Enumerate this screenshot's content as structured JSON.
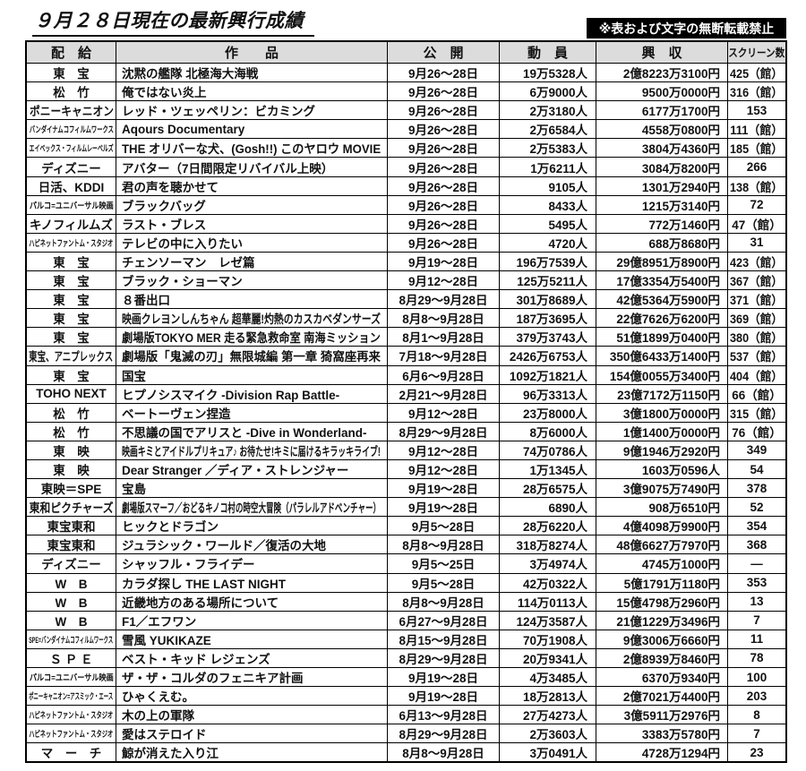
{
  "page": {
    "title": "９月２８日現在の最新興行成績",
    "notice": "※表および文字の無断転載禁止"
  },
  "colors": {
    "header_bg": "#dcdcdc",
    "notice_bg": "#000000",
    "notice_fg": "#ffffff",
    "border": "#000000"
  },
  "table": {
    "headers": [
      "配　給",
      "作　　品",
      "公　開",
      "動　員",
      "興　収",
      "スクリーン数"
    ],
    "rows": [
      {
        "distributor": "東　宝",
        "title": "沈黙の艦隊 北極海大海戦",
        "release": "9月26～28日",
        "attendance": "19万5328人",
        "revenue": "2億8223万3100円",
        "screens": "425（館）"
      },
      {
        "distributor": "松　竹",
        "title": "俺ではない炎上",
        "release": "9月26～28日",
        "attendance": "6万9000人",
        "revenue": "9500万0000円",
        "screens": "316（館）"
      },
      {
        "distributor": "ポニーキャニオン",
        "title": "レッド・ツェッペリン：ビカミング",
        "release": "9月26～28日",
        "attendance": "2万3180人",
        "revenue": "6177万1700円",
        "screens": "153"
      },
      {
        "distributor": "バンダイナムコフィルムワークス",
        "title": "Aqours Documentary",
        "release": "9月26～28日",
        "attendance": "2万6584人",
        "revenue": "4558万0800円",
        "screens": "111（館）"
      },
      {
        "distributor": "エイベックス・フィルムレーベルズ",
        "title": "THE オリバーな犬、(Gosh!!) このヤロウ MOVIE",
        "release": "9月26～28日",
        "attendance": "2万5383人",
        "revenue": "3804万4360円",
        "screens": "185（館）"
      },
      {
        "distributor": "ディズニー",
        "title": "アバター（7日間限定リバイバル上映）",
        "release": "9月26～28日",
        "attendance": "1万6211人",
        "revenue": "3084万8200円",
        "screens": "266"
      },
      {
        "distributor": "日活、KDDI",
        "title": "君の声を聴かせて",
        "release": "9月26～28日",
        "attendance": "9105人",
        "revenue": "1301万2940円",
        "screens": "138（館）"
      },
      {
        "distributor": "パルコ=ユニバーサル映画",
        "title": "ブラックバッグ",
        "release": "9月26～28日",
        "attendance": "8433人",
        "revenue": "1215万3140円",
        "screens": "72"
      },
      {
        "distributor": "キノフィルムズ",
        "title": "ラスト・ブレス",
        "release": "9月26～28日",
        "attendance": "5495人",
        "revenue": "772万1460円",
        "screens": "47（館）"
      },
      {
        "distributor": "ハピネットファントム・スタジオ",
        "title": "テレビの中に入りたい",
        "release": "9月26～28日",
        "attendance": "4720人",
        "revenue": "688万8680円",
        "screens": "31"
      },
      {
        "distributor": "東　宝",
        "title": "チェンソーマン　レゼ篇",
        "release": "9月19～28日",
        "attendance": "196万7539人",
        "revenue": "29億8951万8900円",
        "screens": "423（館）"
      },
      {
        "distributor": "東　宝",
        "title": "ブラック・ショーマン",
        "release": "9月12～28日",
        "attendance": "125万5211人",
        "revenue": "17億3354万5400円",
        "screens": "367（館）"
      },
      {
        "distributor": "東　宝",
        "title": "８番出口",
        "release": "8月29～9月28日",
        "attendance": "301万8689人",
        "revenue": "42億5364万5900円",
        "screens": "371（館）"
      },
      {
        "distributor": "東　宝",
        "title": "映画クレヨンしんちゃん 超華麗!灼熱のカスカベダンサーズ",
        "release": "8月8～9月28日",
        "attendance": "187万3695人",
        "revenue": "22億7626万6200円",
        "screens": "369（館）"
      },
      {
        "distributor": "東　宝",
        "title": "劇場版TOKYO MER 走る緊急救命室 南海ミッション",
        "release": "8月1～9月28日",
        "attendance": "379万3743人",
        "revenue": "51億1899万0400円",
        "screens": "380（館）"
      },
      {
        "distributor": "東宝、アニプレックス",
        "title": "劇場版「鬼滅の刃」無限城編 第一章 猗窩座再来",
        "release": "7月18～9月28日",
        "attendance": "2426万6753人",
        "revenue": "350億6433万1400円",
        "screens": "537（館）"
      },
      {
        "distributor": "東　宝",
        "title": "国宝",
        "release": "6月6～9月28日",
        "attendance": "1092万1821人",
        "revenue": "154億0055万3400円",
        "screens": "404（館）"
      },
      {
        "distributor": "TOHO NEXT",
        "title": "ヒプノシスマイク -Division Rap Battle-",
        "release": "2月21～9月28日",
        "attendance": "96万3313人",
        "revenue": "23億7172万1150円",
        "screens": "66（館）"
      },
      {
        "distributor": "松　竹",
        "title": "ベートーヴェン捏造",
        "release": "9月12～28日",
        "attendance": "23万8000人",
        "revenue": "3億1800万0000円",
        "screens": "315（館）"
      },
      {
        "distributor": "松　竹",
        "title": "不思議の国でアリスと -Dive in Wonderland-",
        "release": "8月29～9月28日",
        "attendance": "8万6000人",
        "revenue": "1億1400万0000円",
        "screens": "76（館）"
      },
      {
        "distributor": "東　映",
        "title": "映画キミとアイドルプリキュア♪ お待たせ!キミに届けるキラッキライブ!",
        "release": "9月12～28日",
        "attendance": "74万0786人",
        "revenue": "9億1946万2920円",
        "screens": "349"
      },
      {
        "distributor": "東　映",
        "title": "Dear Stranger ／ディア・ストレンジャー",
        "release": "9月12～28日",
        "attendance": "1万1345人",
        "revenue": "1603万0596人",
        "screens": "54"
      },
      {
        "distributor": "東映＝SPE",
        "title": "宝島",
        "release": "9月19～28日",
        "attendance": "28万6575人",
        "revenue": "3億9075万7490円",
        "screens": "378"
      },
      {
        "distributor": "東和ピクチャーズ",
        "title": "劇場版スマーフ／おどるキノコ村の時空大冒険（パラレルアドベンチャー）",
        "release": "9月19～28日",
        "attendance": "6890人",
        "revenue": "908万6510円",
        "screens": "52"
      },
      {
        "distributor": "東宝東和",
        "title": "ヒックとドラゴン",
        "release": "9月5～28日",
        "attendance": "28万6220人",
        "revenue": "4億4098万9900円",
        "screens": "354"
      },
      {
        "distributor": "東宝東和",
        "title": "ジュラシック・ワールド／復活の大地",
        "release": "8月8～9月28日",
        "attendance": "318万8274人",
        "revenue": "48億6627万7970円",
        "screens": "368"
      },
      {
        "distributor": "ディズニー",
        "title": "シャッフル・フライデー",
        "release": "9月5～25日",
        "attendance": "3万4974人",
        "revenue": "4745万1000円",
        "screens": "―"
      },
      {
        "distributor": "W　B",
        "title": "カラダ探し THE LAST NIGHT",
        "release": "9月5～28日",
        "attendance": "42万0322人",
        "revenue": "5億1791万1180円",
        "screens": "353"
      },
      {
        "distributor": "W　B",
        "title": "近畿地方のある場所について",
        "release": "8月8～9月28日",
        "attendance": "114万0113人",
        "revenue": "15億4798万2960円",
        "screens": "13"
      },
      {
        "distributor": "W　B",
        "title": "F1／エフワン",
        "release": "6月27～9月28日",
        "attendance": "124万3587人",
        "revenue": "21億1229万3496円",
        "screens": "7"
      },
      {
        "distributor": "SPE=バンダイナムコフィルムワークス",
        "title": "雪風 YUKIKAZE",
        "release": "8月15～9月28日",
        "attendance": "70万1908人",
        "revenue": "9億3006万6660円",
        "screens": "11"
      },
      {
        "distributor": "Ｓ Ｐ Ｅ",
        "title": "ベスト・キッド レジェンズ",
        "release": "8月29～9月28日",
        "attendance": "20万9341人",
        "revenue": "2億8939万8460円",
        "screens": "78"
      },
      {
        "distributor": "パルコ=ユニバーサル映画",
        "title": "ザ・ザ・コルダのフェニキア計画",
        "release": "9月19～28日",
        "attendance": "4万3485人",
        "revenue": "6370万9340円",
        "screens": "100"
      },
      {
        "distributor": "ポニーキャニオン=アスミック・エース",
        "title": "ひゃくえむ。",
        "release": "9月19～28日",
        "attendance": "18万2813人",
        "revenue": "2億7021万4400円",
        "screens": "203"
      },
      {
        "distributor": "ハピネットファントム・スタジオ",
        "title": "木の上の軍隊",
        "release": "6月13～9月28日",
        "attendance": "27万4273人",
        "revenue": "3億5911万2976円",
        "screens": "8"
      },
      {
        "distributor": "ハピネットファントム・スタジオ",
        "title": "愛はステロイド",
        "release": "8月29～9月28日",
        "attendance": "2万3603人",
        "revenue": "3383万5780円",
        "screens": "7"
      },
      {
        "distributor": "マ　ー　チ",
        "title": "鯨が消えた入り江",
        "release": "8月8～9月28日",
        "attendance": "3万0491人",
        "revenue": "4728万1294円",
        "screens": "23"
      }
    ]
  }
}
